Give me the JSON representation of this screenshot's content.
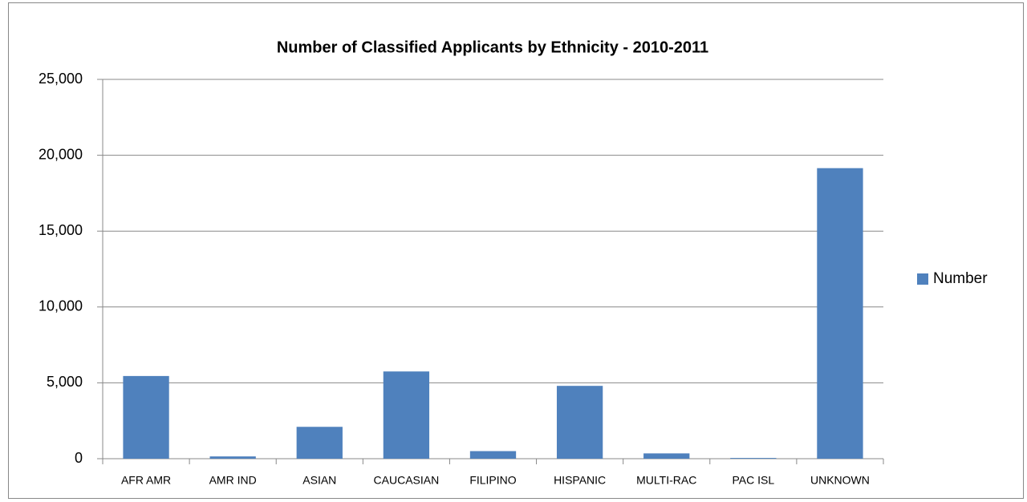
{
  "chart_data": {
    "type": "bar",
    "title": "Number of  Classified Applicants by Ethnicity - 2010-2011",
    "categories": [
      "AFR AMR",
      "AMR IND",
      "ASIAN",
      "CAUCASIAN",
      "FILIPINO",
      "HISPANIC",
      "MULTI-RAC",
      "PAC ISL",
      "UNKNOWN"
    ],
    "series": [
      {
        "name": "Number",
        "color": "#4f81bd",
        "values": [
          5450,
          150,
          2100,
          5750,
          500,
          4800,
          350,
          50,
          19150
        ]
      }
    ],
    "ylim": [
      0,
      25000
    ],
    "yticks": [
      0,
      {
        "value": 5000,
        "label": "5,000"
      },
      {
        "value": 10000,
        "label": "10,000"
      },
      {
        "value": 15000,
        "label": "15,000"
      },
      {
        "value": 20000,
        "label": "20,000"
      },
      {
        "value": 25000,
        "label": "25,000"
      }
    ],
    "grid": true,
    "legend": "right"
  }
}
